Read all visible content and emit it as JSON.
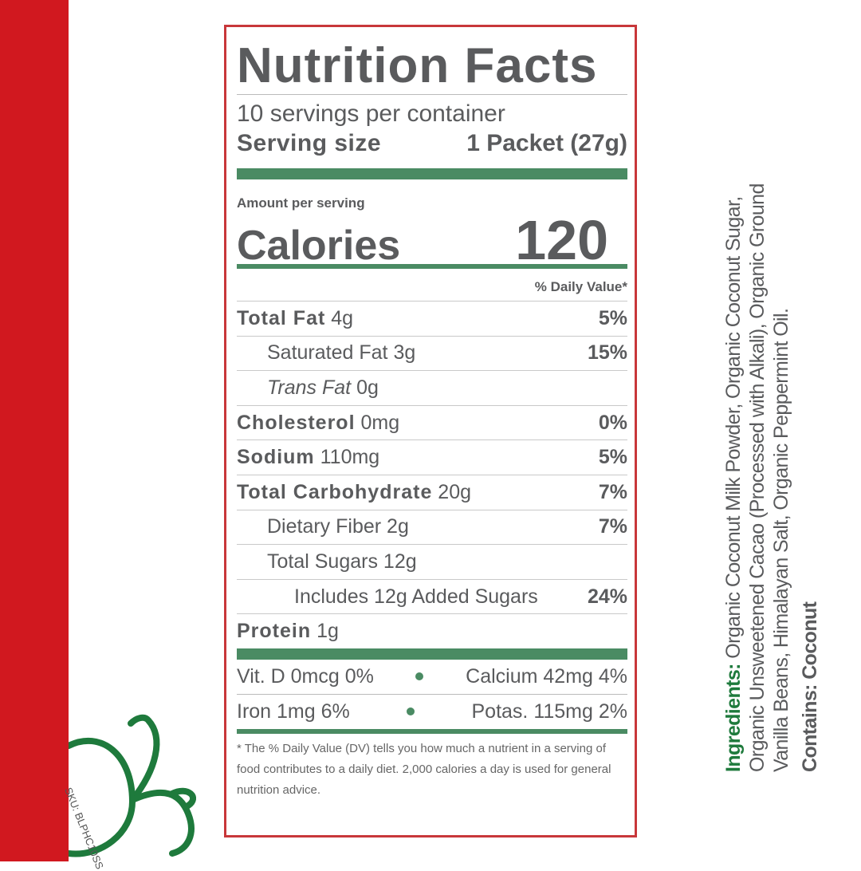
{
  "colors": {
    "brand_red": "#d1181f",
    "green": "#4a8b63",
    "ingredients_green": "#1e7a3c",
    "text": "#5a5b5d"
  },
  "sku": "SKU: BLPHC10SS",
  "label": {
    "title": "Nutrition Facts",
    "servings": "10 servings per container",
    "serving_size_label": "Serving size",
    "serving_size_value": "1 Packet (27g)",
    "amount_per_serving": "Amount per serving",
    "calories_label": "Calories",
    "calories_value": "120",
    "daily_value_header": "% Daily Value*",
    "rows": [
      {
        "name": "Total Fat",
        "amount": "4g",
        "dv": "5%"
      },
      {
        "name": "Saturated Fat",
        "amount": "3g",
        "dv": "15%"
      },
      {
        "name": "Trans Fat",
        "amount": "0g",
        "dv": ""
      },
      {
        "name": "Cholesterol",
        "amount": "0mg",
        "dv": "0%"
      },
      {
        "name": "Sodium",
        "amount": "110mg",
        "dv": "5%"
      },
      {
        "name": "Total Carbohydrate",
        "amount": "20g",
        "dv": "7%"
      },
      {
        "name": "Dietary Fiber",
        "amount": "2g",
        "dv": "7%"
      },
      {
        "name": "Total Sugars",
        "amount": "12g",
        "dv": ""
      },
      {
        "name": "Includes 12g Added Sugars",
        "amount": "",
        "dv": "24%"
      },
      {
        "name": "Protein",
        "amount": "1g",
        "dv": ""
      }
    ],
    "vitamins": [
      {
        "left": "Vit. D 0mcg 0%",
        "right": "Calcium 42mg 4%"
      },
      {
        "left": "Iron 1mg 6%",
        "right": "Potas. 115mg 2%"
      }
    ],
    "footnote": "* The % Daily Value (DV) tells you how much a nutrient in a serving of food contributes to a daily diet. 2,000 calories a day is used for general nutrition advice."
  },
  "ingredients": {
    "label": "Ingredients:",
    "line1": " Organic Coconut Milk Powder, Organic Coconut Sugar,",
    "line2": "Organic Unsweetened Cacao (Processed with Alkali), Organic Ground",
    "line3": "Vanilla Beans, Himalayan Salt, Organic Peppermint Oil.",
    "contains": "Contains: Coconut"
  }
}
